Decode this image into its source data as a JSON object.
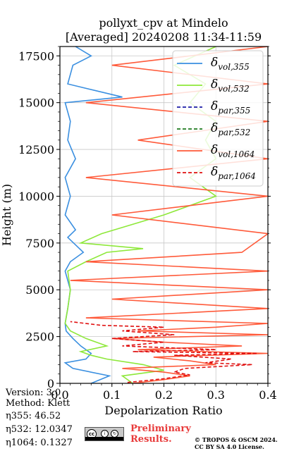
{
  "chart_data": {
    "type": "line",
    "title": "pollyxt_cpv at Mindelo",
    "subtitle": "[Averaged] 20240208 11:34-11:59",
    "xlabel": "Depolarization Ratio",
    "ylabel": "Height (m)",
    "xlim": [
      0.0,
      0.4
    ],
    "ylim": [
      0,
      18000
    ],
    "xticks": [
      "0.0",
      "0.1",
      "0.2",
      "0.3",
      "0.4"
    ],
    "yticks": [
      "0",
      "2500",
      "5000",
      "7500",
      "10000",
      "12500",
      "15000",
      "17500"
    ],
    "grid": true,
    "legend_position": "top-right",
    "series": [
      {
        "name": "δvol,355",
        "label_base": "δ",
        "label_sub": "vol,355",
        "color": "#3a8fe0",
        "dash": "solid",
        "y": [
          0,
          400,
          800,
          1100,
          1300,
          1600,
          2000,
          2400,
          2800,
          3200,
          4000,
          5000,
          6000,
          6500,
          7000,
          7800,
          8200,
          9000,
          10000,
          11000,
          12000,
          13000,
          14000,
          15000,
          15300,
          16000,
          17000,
          17500,
          18000
        ],
        "x": [
          0.06,
          0.095,
          0.025,
          0.01,
          0.05,
          0.06,
          0.04,
          0.025,
          0.012,
          0.01,
          0.015,
          0.02,
          0.01,
          0.02,
          0.045,
          0.015,
          0.03,
          0.01,
          0.02,
          0.01,
          0.03,
          0.015,
          0.02,
          0.01,
          0.12,
          0.015,
          0.025,
          0.06,
          0.03
        ]
      },
      {
        "name": "δvol,532",
        "label_base": "δ",
        "label_sub": "vol,532",
        "color": "#8ee83a",
        "dash": "solid",
        "y": [
          0,
          400,
          700,
          1000,
          1300,
          1500,
          1700,
          2000,
          2400,
          2800,
          3200,
          4000,
          5000,
          6000,
          6500,
          7000,
          7200,
          7500,
          8000,
          9000,
          10000,
          11000,
          12000,
          13000,
          14000,
          15000,
          16000,
          17000,
          18000
        ],
        "x": [
          0.14,
          0.12,
          0.2,
          0.16,
          0.09,
          0.06,
          0.04,
          0.09,
          0.05,
          0.02,
          0.01,
          0.015,
          0.02,
          0.015,
          0.05,
          0.09,
          0.16,
          0.04,
          0.08,
          0.2,
          0.3,
          0.25,
          0.3,
          0.28,
          0.3,
          0.25,
          0.28,
          0.22,
          0.3
        ]
      },
      {
        "name": "δpar,355",
        "label_base": "δ",
        "label_sub": "par,355",
        "color": "#1c1ca8",
        "dash": "dashed",
        "y": [],
        "x": []
      },
      {
        "name": "δpar,532",
        "label_base": "δ",
        "label_sub": "par,532",
        "color": "#1f7a1f",
        "dash": "dashed",
        "y": [],
        "x": []
      },
      {
        "name": "δvol,1064",
        "label_base": "δ",
        "label_sub": "vol,1064",
        "color": "#ff5a3a",
        "dash": "solid",
        "y": [
          0,
          200,
          400,
          600,
          800,
          1000,
          1200,
          1400,
          1600,
          1800,
          2000,
          2200,
          2400,
          2600,
          2800,
          3000,
          3200,
          3500,
          4000,
          4500,
          5000,
          5500,
          6000,
          6500,
          7000,
          8000,
          9000,
          10000,
          11000,
          12000,
          13000,
          14000,
          15000,
          16000,
          17000,
          18000
        ],
        "x": [
          0.14,
          0.2,
          0.25,
          0.2,
          0.12,
          0.3,
          0.25,
          0.18,
          0.4,
          0.15,
          0.35,
          0.2,
          0.1,
          0.4,
          0.15,
          0.3,
          0.4,
          0.05,
          0.4,
          0.1,
          0.4,
          0.02,
          0.4,
          0.05,
          0.35,
          0.4,
          0.1,
          0.4,
          0.05,
          0.4,
          0.15,
          0.4,
          0.05,
          0.4,
          0.1,
          0.4
        ]
      },
      {
        "name": "δpar,1064",
        "label_base": "δ",
        "label_sub": "par,1064",
        "color": "#e01010",
        "dash": "dashed",
        "y": [
          50,
          250,
          450,
          600,
          800,
          1000,
          1100,
          1300,
          1500,
          1600,
          1700,
          1800,
          2000,
          2200,
          2400,
          2600,
          2800,
          3000,
          3100,
          3300
        ],
        "x": [
          0.13,
          0.2,
          0.25,
          0.22,
          0.24,
          0.37,
          0.28,
          0.33,
          0.22,
          0.38,
          0.14,
          0.3,
          0.12,
          0.2,
          0.1,
          0.22,
          0.12,
          0.2,
          0.08,
          0.02
        ]
      }
    ]
  },
  "meta": {
    "version_label": "Version: 3.0",
    "method_label": "Method: Klett",
    "eta355": "η355:  46.52",
    "eta532": "η532: 12.0347",
    "eta1064": "η1064: 0.1327"
  },
  "footer": {
    "cc_text": "cc",
    "prelim_line1": "Preliminary",
    "prelim_line2": "Results.",
    "credit_line1": "© TROPOS & OSCM 2024.",
    "credit_line2": "CC BY SA 4.0 License."
  }
}
